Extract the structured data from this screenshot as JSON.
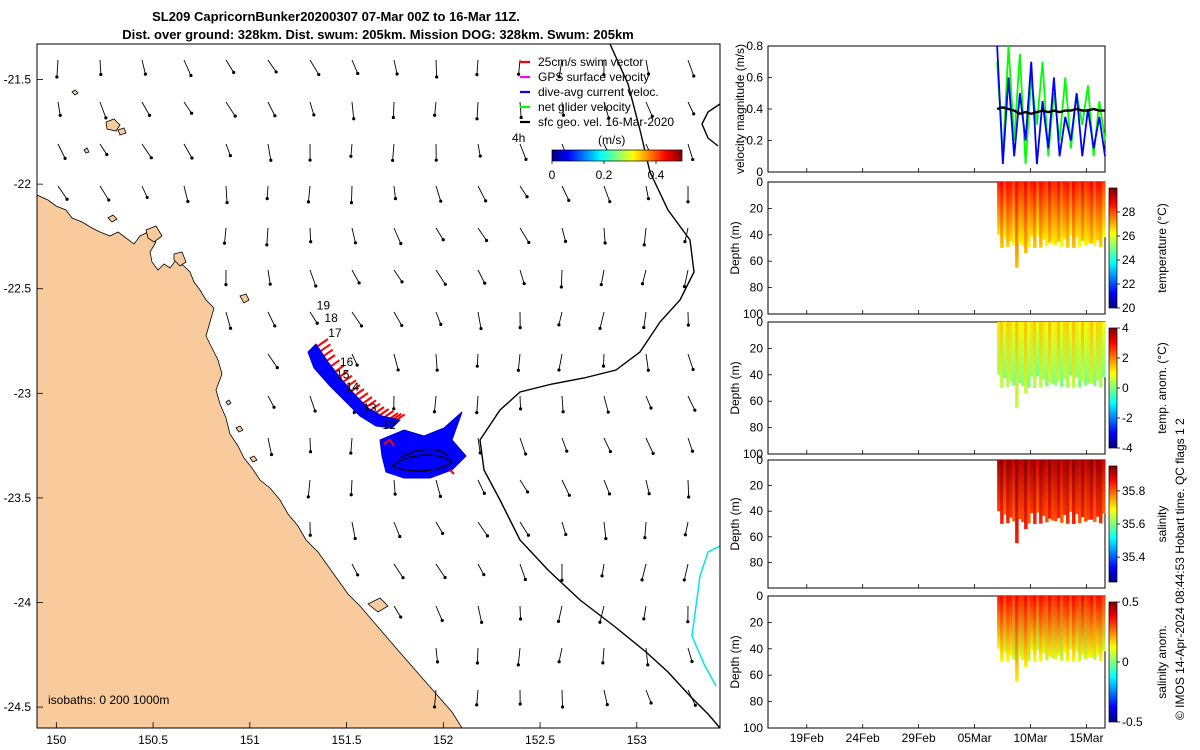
{
  "title_line1": "SL209 CapricornBunker20200307 07-Mar 00Z to 16-Mar 11Z.",
  "title_line2": "Dist. over ground: 328km. Dist. swum: 205km. Mission DOG: 328km. Swum: 205km",
  "isobaths_label": "isobaths: 0   200  1000m",
  "copyright": "© IMOS 14-Apr-2024 08:44:53 Hobart time. QC flags 1  2",
  "legend": {
    "items": [
      {
        "label": "25cm/s swim vector",
        "color": "#ff0000"
      },
      {
        "label": "GPS surface velocity",
        "color": "#ff00ff"
      },
      {
        "label": "dive-avg current veloc.",
        "color": "#0000ff"
      },
      {
        "label": "net glider velocity",
        "color": "#00ff00"
      },
      {
        "label": "sfc geo. vel. 16-Mar-2020",
        "color": "#000000"
      }
    ],
    "scale_label": "4h",
    "colorbar_title": "(m/s)",
    "colorbar_ticks": [
      "0",
      "0.2",
      "0.4"
    ]
  },
  "colors": {
    "land": "#f9cb9c",
    "glider_track": "#0000ff",
    "swim": "#ff0000",
    "current_line": "#00e5ee"
  },
  "chart_data": [
    {
      "type": "scatter",
      "name": "map",
      "x_ticks": [
        "150",
        "150.5",
        "151",
        "151.5",
        "152",
        "152.5",
        "153"
      ],
      "y_ticks": [
        "-21.5",
        "-22",
        "-22.5",
        "-23",
        "-23.5",
        "-24",
        "-24.5"
      ],
      "xlim": [
        149.9,
        153.43
      ],
      "ylim": [
        -24.6,
        -21.33
      ],
      "day_labels": [
        {
          "label": "19",
          "lon": 151.38,
          "lat": -22.6
        },
        {
          "label": "18",
          "lon": 151.42,
          "lat": -22.66
        },
        {
          "label": "17",
          "lon": 151.44,
          "lat": -22.73
        },
        {
          "label": "16",
          "lon": 151.5,
          "lat": -22.87
        },
        {
          "label": "15",
          "lon": 151.48,
          "lat": -22.93
        },
        {
          "label": "14",
          "lon": 151.53,
          "lat": -22.99
        },
        {
          "label": "13",
          "lon": 151.62,
          "lat": -23.09
        },
        {
          "label": "12",
          "lon": 151.72,
          "lat": -23.17
        }
      ]
    },
    {
      "type": "line",
      "name": "velocity",
      "ylabel": "velocity magnitude (m/s)",
      "y_ticks": [
        "0",
        "0.2",
        "0.4",
        "0.6",
        "0.8"
      ],
      "ylim": [
        0,
        0.8
      ],
      "series": [
        {
          "color": "#00ff00",
          "values": [
            0.7,
            0.1,
            0.8,
            0.2,
            0.75,
            0.05,
            0.6,
            0.3,
            0.7,
            0.1,
            0.5,
            0.2,
            0.6,
            0.15,
            0.5,
            0.3,
            0.55,
            0.1,
            0.45,
            0.2
          ]
        },
        {
          "color": "#0000ff",
          "values": [
            0.8,
            0.05,
            0.6,
            0.1,
            0.5,
            0.2,
            0.7,
            0.05,
            0.45,
            0.15,
            0.6,
            0.1,
            0.35,
            0.2,
            0.5,
            0.1,
            0.4,
            0.15,
            0.35,
            0.1
          ]
        },
        {
          "color": "#000000",
          "values": [
            0.4,
            0.41,
            0.4,
            0.39,
            0.37,
            0.38,
            0.37,
            0.38,
            0.39,
            0.38,
            0.39,
            0.38,
            0.39,
            0.39,
            0.4,
            0.39,
            0.39,
            0.4,
            0.39,
            0.39
          ]
        }
      ]
    },
    {
      "type": "heatmap",
      "name": "temperature",
      "ylabel": "Depth (m)",
      "cbar_label": "temperature (°C)",
      "y_ticks": [
        "0",
        "20",
        "40",
        "60",
        "80",
        "100"
      ],
      "cbar_ticks": [
        "20",
        "22",
        "24",
        "26",
        "28"
      ],
      "clim": [
        20,
        30
      ],
      "surface_value": 28.5,
      "deep_value": 26.5
    },
    {
      "type": "heatmap",
      "name": "temp_anom",
      "ylabel": "Depth (m)",
      "cbar_label": "temp. anom. (°C)",
      "y_ticks": [
        "0",
        "20",
        "40",
        "60",
        "80",
        "100"
      ],
      "cbar_ticks": [
        "-4",
        "-2",
        "0",
        "2",
        "4"
      ],
      "clim": [
        -4,
        4
      ],
      "surface_value": 1.2,
      "deep_value": 0.2
    },
    {
      "type": "heatmap",
      "name": "salinity",
      "ylabel": "Depth (m)",
      "cbar_label": "salinity",
      "y_ticks": [
        "0",
        "20",
        "40",
        "60",
        "80"
      ],
      "cbar_ticks": [
        "35.4",
        "35.6",
        "35.8"
      ],
      "clim": [
        35.25,
        35.95
      ],
      "surface_value": 35.92,
      "deep_value": 35.82
    },
    {
      "type": "heatmap",
      "name": "salinity_anom",
      "ylabel": "Depth (m)",
      "cbar_label": "salinity anom.",
      "y_ticks": [
        "0",
        "20",
        "40",
        "60",
        "80",
        "100"
      ],
      "cbar_ticks": [
        "-0.5",
        "0",
        "0.5"
      ],
      "clim": [
        -0.5,
        0.5
      ],
      "x_ticks": [
        "19Feb",
        "24Feb",
        "29Feb",
        "05Mar",
        "10Mar",
        "15Mar"
      ],
      "surface_value": 0.35,
      "deep_value": 0.1
    }
  ]
}
